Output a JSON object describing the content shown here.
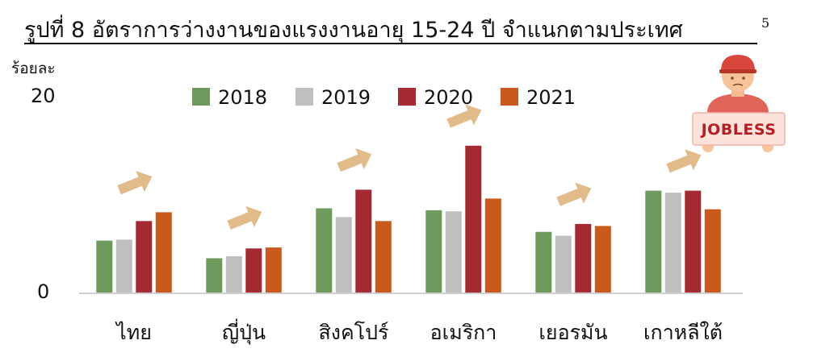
{
  "chart_data": {
    "type": "bar",
    "title": "รูปที่ 8 อัตราการว่างงานของแรงงานอายุ 15-24 ปี จำแนกตามประเทศ",
    "title_note": "5",
    "ylabel": "ร้อยละ",
    "y_ticks": [
      "0",
      "20"
    ],
    "ylim": [
      0,
      20
    ],
    "categories": [
      "ไทย",
      "ญี่ปุ่น",
      "สิงคโปร์",
      "อเมริกา",
      "เยอรมัน",
      "เกาหลีใต้"
    ],
    "series": [
      {
        "name": "2018",
        "color": "#6f9a5e",
        "values": [
          5.3,
          3.5,
          8.6,
          8.4,
          6.2,
          10.4
        ]
      },
      {
        "name": "2019",
        "color": "#bfbfbf",
        "values": [
          5.4,
          3.7,
          7.7,
          8.3,
          5.8,
          10.2
        ]
      },
      {
        "name": "2020",
        "color": "#a52a33",
        "values": [
          7.3,
          4.5,
          10.5,
          15.0,
          7.0,
          10.4
        ]
      },
      {
        "name": "2021",
        "color": "#c85a1e",
        "values": [
          8.2,
          4.6,
          7.3,
          9.6,
          6.8,
          8.5
        ]
      }
    ],
    "legend_position": "top",
    "grid": false,
    "annotation_arrow_color": "#e2bb8a"
  },
  "badge": {
    "text": "JOBLESS",
    "icon": "jobless-person-icon"
  }
}
